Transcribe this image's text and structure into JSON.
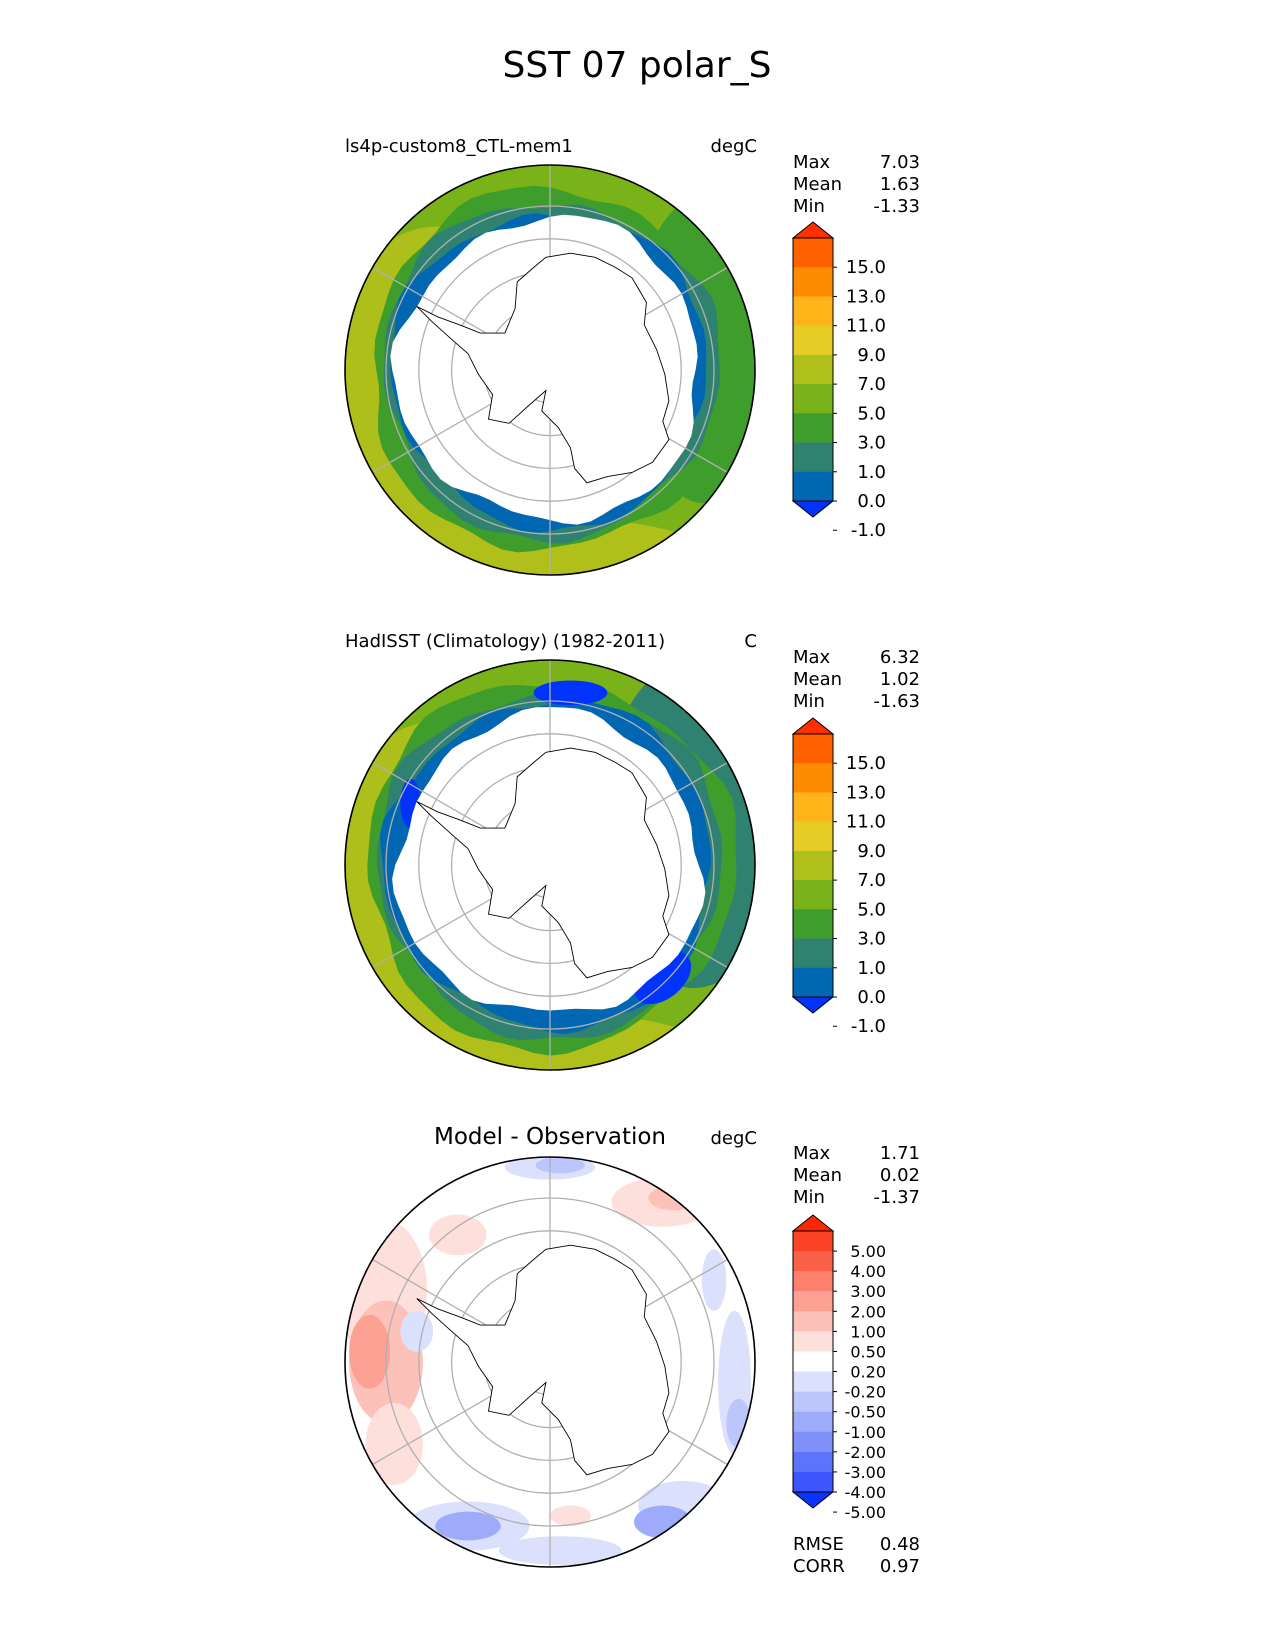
{
  "title": "SST 07 polar_S",
  "colors": {
    "mean_levels": [
      "#0233fd",
      "#0167b3",
      "#2f8270",
      "#3f9e2b",
      "#7ab319",
      "#b1bf1b",
      "#e6cc25",
      "#ffb41a",
      "#ff8c00",
      "#ff6000",
      "#ff3000"
    ],
    "diff_levels": [
      "#0a33fc",
      "#3a56fc",
      "#5d73fb",
      "#7f90fb",
      "#9eabfb",
      "#bdc6fa",
      "#dbe1fc",
      "#ffffff",
      "#fde0dc",
      "#fcc1b8",
      "#fca193",
      "#fb816d",
      "#fb6148",
      "#fc4326",
      "#fc2600"
    ],
    "land": "#ffffff",
    "grid": "#b0b0b0"
  },
  "panels": [
    {
      "id": "model",
      "title": "ls4p-custom8_CTL-mem1",
      "title_style": "left",
      "units": "degC",
      "stats": [
        {
          "label": "Max",
          "value": "7.03"
        },
        {
          "label": "Mean",
          "value": "1.63"
        },
        {
          "label": "Min",
          "value": "-1.33"
        }
      ],
      "colorbar": {
        "ticks": [
          "15.0",
          "13.0",
          "11.0",
          "9.0",
          "7.0",
          "5.0",
          "3.0",
          "1.0",
          "0.0",
          "-1.0"
        ]
      }
    },
    {
      "id": "obs",
      "title": "HadISST (Climatology) (1982-2011)",
      "title_style": "left",
      "units": "C",
      "stats": [
        {
          "label": "Max",
          "value": "6.32"
        },
        {
          "label": "Mean",
          "value": "1.02"
        },
        {
          "label": "Min",
          "value": "-1.63"
        }
      ],
      "colorbar": {
        "ticks": [
          "15.0",
          "13.0",
          "11.0",
          "9.0",
          "7.0",
          "5.0",
          "3.0",
          "1.0",
          "0.0",
          "-1.0"
        ]
      }
    },
    {
      "id": "diff",
      "title": "Model - Observation",
      "title_style": "center",
      "units": "degC",
      "stats": [
        {
          "label": "Max",
          "value": "1.71"
        },
        {
          "label": "Mean",
          "value": "0.02"
        },
        {
          "label": "Min",
          "value": "-1.37"
        }
      ],
      "colorbar": {
        "ticks": [
          "5.00",
          "4.00",
          "3.00",
          "2.00",
          "1.00",
          "0.50",
          "0.20",
          "-0.20",
          "-0.50",
          "-1.00",
          "-2.00",
          "-3.00",
          "-4.00",
          "-5.00"
        ]
      },
      "metrics": [
        {
          "label": "RMSE",
          "value": "0.48"
        },
        {
          "label": "CORR",
          "value": "0.97"
        }
      ]
    }
  ],
  "chart_data": {
    "type": "heatmap",
    "title": "SST 07 polar_S",
    "projection": "south polar stereographic",
    "grid": true,
    "subplots": [
      {
        "name": "ls4p-custom8_CTL-mem1",
        "units": "degC",
        "max": 7.03,
        "mean": 1.63,
        "min": -1.33,
        "levels": [
          -1.0,
          0.0,
          1.0,
          3.0,
          5.0,
          7.0,
          9.0,
          11.0,
          13.0,
          15.0
        ],
        "colorbar_extend": "both"
      },
      {
        "name": "HadISST (Climatology) (1982-2011)",
        "units": "C",
        "max": 6.32,
        "mean": 1.02,
        "min": -1.63,
        "levels": [
          -1.0,
          0.0,
          1.0,
          3.0,
          5.0,
          7.0,
          9.0,
          11.0,
          13.0,
          15.0
        ],
        "colorbar_extend": "both"
      },
      {
        "name": "Model - Observation",
        "units": "degC",
        "max": 1.71,
        "mean": 0.02,
        "min": -1.37,
        "levels": [
          -5.0,
          -4.0,
          -3.0,
          -2.0,
          -1.0,
          -0.5,
          -0.2,
          0.2,
          0.5,
          1.0,
          2.0,
          3.0,
          4.0,
          5.0
        ],
        "colorbar_extend": "both",
        "rmse": 0.48,
        "corr": 0.97
      }
    ]
  }
}
